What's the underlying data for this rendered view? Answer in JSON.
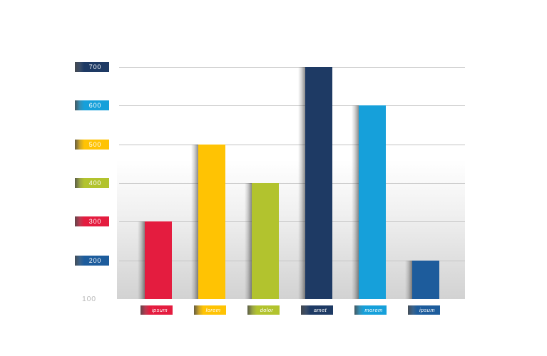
{
  "page": {
    "background": "#ffffff"
  },
  "chart_data": {
    "type": "bar",
    "title": "",
    "xlabel": "",
    "ylabel": "",
    "categories": [
      "ipsum",
      "lorem",
      "dolor",
      "amet",
      "morem",
      "ipsum"
    ],
    "values": [
      300,
      500,
      400,
      700,
      600,
      200
    ],
    "bar_colors": [
      "#e41c3f",
      "#ffc303",
      "#b2c32e",
      "#1e3a64",
      "#16a0da",
      "#1d5c9c"
    ],
    "ylim": [
      100,
      700
    ],
    "grid": true,
    "legend_position": "none",
    "yticks": [
      {
        "label": "700",
        "value": 700,
        "box_color": "#1e3a64"
      },
      {
        "label": "600",
        "value": 600,
        "box_color": "#16a0da"
      },
      {
        "label": "500",
        "value": 500,
        "box_color": "#ffc303"
      },
      {
        "label": "400",
        "value": 400,
        "box_color": "#b2c32e"
      },
      {
        "label": "300",
        "value": 300,
        "box_color": "#e41c3f"
      },
      {
        "label": "200",
        "value": 200,
        "box_color": "#1d5c9c"
      },
      {
        "label": "100",
        "value": 100,
        "box_color": null
      }
    ]
  }
}
